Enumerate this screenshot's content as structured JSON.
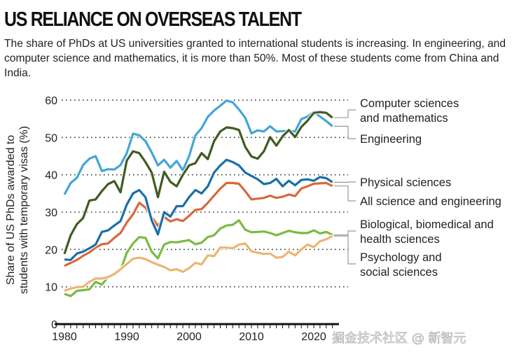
{
  "title": "US RELIANCE ON OVERSEAS TALENT",
  "subtitle": "The share of PhDs at US universities granted to international students is increasing. In engineering, and computer science and mathematics, it is more than 50%. Most of these students come from China and India.",
  "watermark": "掘金技术社区 @ 新智元",
  "chart_data": {
    "type": "line",
    "title": "US RELIANCE ON OVERSEAS TALENT",
    "ylabel": "Share of US PhDs awarded to students with temporary visas (%)",
    "xlabel": "",
    "ylim": [
      0,
      60
    ],
    "yticks": [
      0,
      10,
      20,
      30,
      40,
      50,
      60
    ],
    "xticks": [
      1980,
      1990,
      2000,
      2010,
      2020
    ],
    "grid": "horizontal dotted",
    "legend": "right, labels at line ends",
    "x": [
      1980,
      1981,
      1982,
      1983,
      1984,
      1985,
      1986,
      1987,
      1988,
      1989,
      1990,
      1991,
      1992,
      1993,
      1994,
      1995,
      1996,
      1997,
      1998,
      1999,
      2000,
      2001,
      2002,
      2003,
      2004,
      2005,
      2006,
      2007,
      2008,
      2009,
      2010,
      2011,
      2012,
      2013,
      2014,
      2015,
      2016,
      2017,
      2018,
      2019,
      2020,
      2021,
      2022,
      2023
    ],
    "series": [
      {
        "name": "Computer sciences and mathematics",
        "label_lines": [
          "Computer sciences",
          "and mathematics"
        ],
        "color": "#3f5c22",
        "values": [
          18.8,
          23.8,
          26.8,
          28.4,
          33.1,
          33.4,
          35.6,
          37.5,
          38.3,
          35.3,
          43.8,
          46.3,
          45.8,
          43.4,
          40.6,
          34,
          40.8,
          38.1,
          36.9,
          40,
          42.5,
          43.1,
          45.8,
          44.2,
          49,
          51.6,
          52.7,
          52.5,
          52,
          47.5,
          44.9,
          44.3,
          46.3,
          50.1,
          47.8,
          50.3,
          52,
          50.1,
          52.8,
          54.5,
          56.6,
          56.8,
          56.6,
          55.3
        ]
      },
      {
        "name": "Engineering",
        "label_lines": [
          "Engineering"
        ],
        "color": "#42a6d6",
        "values": [
          34.7,
          37.8,
          39.2,
          42.6,
          44.3,
          45,
          41,
          41.5,
          41.4,
          42.6,
          45.8,
          51,
          50.6,
          49,
          46,
          42.5,
          44,
          41.9,
          43.7,
          41.2,
          45,
          50.5,
          52.5,
          55.5,
          57.2,
          58.5,
          59.9,
          59.4,
          57.5,
          55.3,
          51.1,
          51.9,
          51.6,
          53,
          51.6,
          51.7,
          51.8,
          51.6,
          54.9,
          55.6,
          56.9,
          55.6,
          54.4,
          53
        ]
      },
      {
        "name": "Physical sciences",
        "label_lines": [
          "Physical sciences"
        ],
        "color": "#1b6ea8",
        "values": [
          17.3,
          17.2,
          18.9,
          19.4,
          20.3,
          21.3,
          24.7,
          25.1,
          26.4,
          27.6,
          32,
          35,
          35.9,
          34,
          27.8,
          24,
          30,
          28.8,
          31.6,
          31.6,
          34,
          35.9,
          35,
          36.9,
          40.6,
          42.5,
          44,
          43.4,
          42.5,
          40.6,
          39.7,
          38.8,
          37.5,
          37.8,
          38.9,
          36.9,
          38.4,
          37.2,
          38.6,
          38.8,
          38.4,
          39.4,
          39.1,
          38
        ]
      },
      {
        "name": "All science and engineering",
        "label_lines": [
          "All science and engineering"
        ],
        "color": "#d9683a",
        "values": [
          15.6,
          16.4,
          17.2,
          18.3,
          19.2,
          20.5,
          21.4,
          21.6,
          23.1,
          24.4,
          27.2,
          29.4,
          32.5,
          31.2,
          28.7,
          26.3,
          28.7,
          27.5,
          28.1,
          27.6,
          29,
          30.6,
          30.8,
          32.5,
          34.4,
          36.3,
          37.8,
          37.8,
          37.6,
          35.6,
          33.4,
          33.6,
          33.8,
          34.4,
          33.8,
          34.1,
          34.7,
          34.3,
          36.3,
          36.9,
          37.6,
          37.7,
          37.8,
          37
        ]
      },
      {
        "name": "Biological, biomedical and health sciences",
        "label_lines": [
          "Biological, biomedical and",
          "health sciences"
        ],
        "color": "#7bbb41",
        "values": [
          8.1,
          7.5,
          8.9,
          9.1,
          9.3,
          11.3,
          10.6,
          12.6,
          13.4,
          14.4,
          19.1,
          21.6,
          23.3,
          23.1,
          19.4,
          17.6,
          21.3,
          22,
          21.9,
          22.2,
          22.5,
          21.4,
          21.8,
          23.3,
          23.8,
          25.6,
          26.4,
          26.6,
          27.8,
          25.3,
          24.6,
          24.7,
          24.8,
          24.4,
          23.8,
          24.4,
          25,
          24.6,
          24.4,
          24.4,
          25.1,
          24.3,
          24.7,
          23.9
        ]
      },
      {
        "name": "Psychology and social sciences",
        "label_lines": [
          "Psychology and",
          "social sciences"
        ],
        "color": "#ecb474",
        "values": [
          8.9,
          9.5,
          9.9,
          10,
          11.3,
          12.2,
          12.2,
          12.6,
          13.4,
          14.7,
          16.1,
          17.5,
          17.8,
          17.4,
          16.6,
          15.9,
          15.3,
          14.4,
          14.7,
          14,
          15,
          16.4,
          16,
          18.4,
          18.2,
          20.5,
          20.5,
          20.3,
          21.3,
          21.6,
          19.5,
          19.1,
          18.8,
          18.9,
          17.8,
          18,
          19.4,
          18.4,
          20,
          21.3,
          20.6,
          22.2,
          22.7,
          23.6
        ]
      }
    ]
  }
}
